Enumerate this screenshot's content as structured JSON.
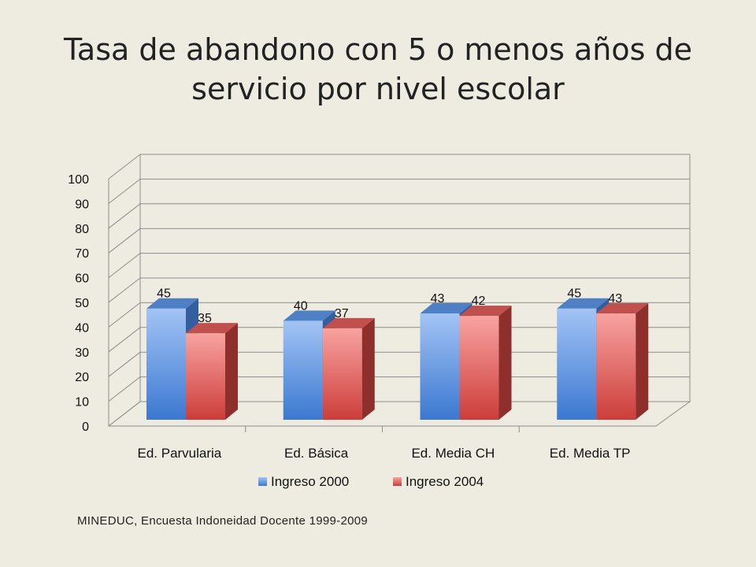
{
  "slide": {
    "title_line1": "Tasa de abandono con 5 o menos años de",
    "title_line2": "servicio por nivel escolar",
    "source": "MINEDUC, Encuesta Indoneidad Docente  1999-2009"
  },
  "chart_data": {
    "type": "bar",
    "style": "3d-clustered-column",
    "categories": [
      "Ed. Parvularia",
      "Ed. Básica",
      "Ed. Media CH",
      "Ed. Media TP"
    ],
    "series": [
      {
        "name": "Ingreso 2000",
        "values": [
          45,
          40,
          43,
          45
        ],
        "color": "#4f81bd"
      },
      {
        "name": "Ingreso 2004",
        "values": [
          35,
          37,
          42,
          43
        ],
        "color": "#c0504d"
      }
    ],
    "ylim": [
      0,
      100
    ],
    "yticks": [
      0,
      10,
      20,
      30,
      40,
      50,
      60,
      70,
      80,
      90,
      100
    ],
    "grid": true,
    "data_labels": true,
    "legend": "bottom"
  }
}
